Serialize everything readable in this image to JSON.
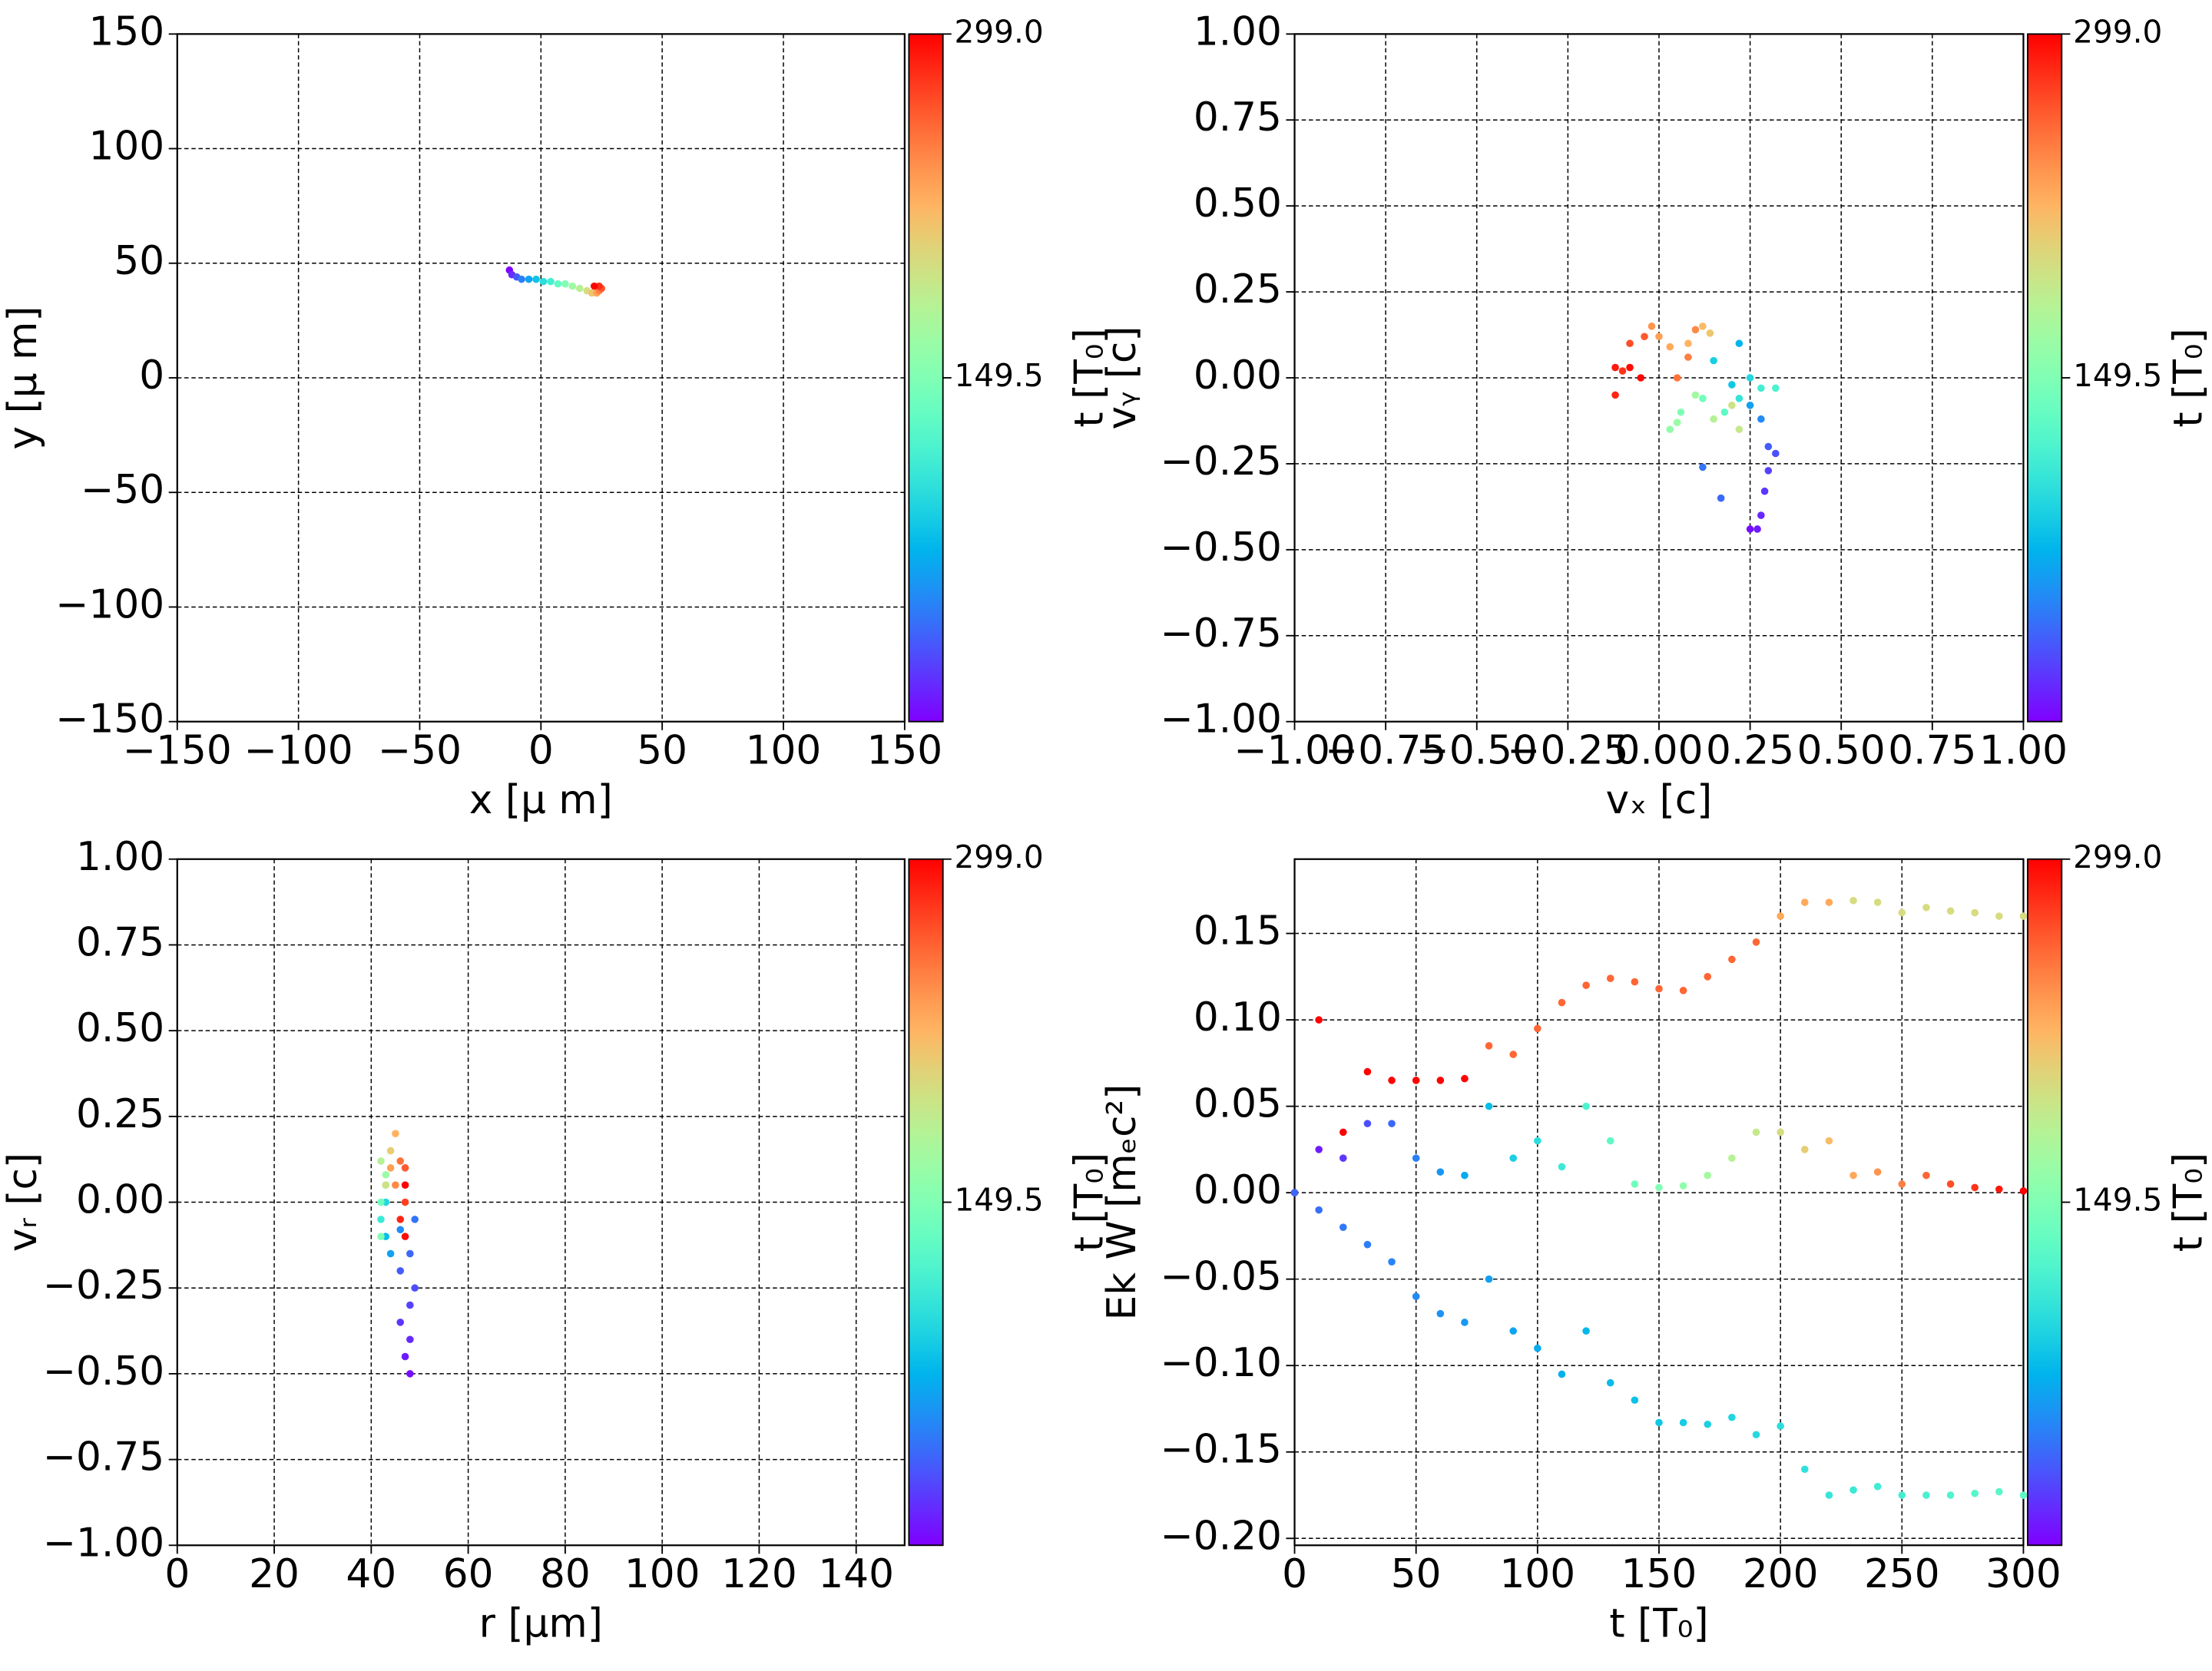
{
  "chart_data": [
    {
      "type": "scatter",
      "xlabel": "x  [μ m]",
      "ylabel": "y  [μ m]",
      "colorbar_label": "t [T₀]",
      "xlim": [
        -150,
        150
      ],
      "ylim": [
        -150,
        150
      ],
      "xticks": [
        {
          "value": -150,
          "label": "−150"
        },
        {
          "value": -100,
          "label": "−100"
        },
        {
          "value": -50,
          "label": "−50"
        },
        0,
        50,
        100,
        150
      ],
      "yticks": [
        {
          "value": -150,
          "label": "−150"
        },
        {
          "value": -100,
          "label": "−100"
        },
        {
          "value": -50,
          "label": "−50"
        },
        0,
        50,
        100,
        150
      ],
      "grid": true,
      "colormap": "rainbow",
      "clim": [
        0,
        299
      ],
      "cticks": [
        149.5,
        {
          "value": 299,
          "label": "299.0"
        }
      ],
      "series": [
        {
          "x": [
            -13,
            -12,
            -10,
            -8,
            -5,
            -2,
            1,
            4,
            7,
            10,
            13,
            16,
            19,
            21,
            23,
            24,
            25,
            24,
            22
          ],
          "values": [
            47,
            45,
            44,
            43,
            43,
            43,
            42,
            42,
            41,
            41,
            40,
            39,
            38,
            37,
            37,
            38,
            39,
            40,
            40
          ],
          "c": [
            0,
            17,
            33,
            50,
            66,
            83,
            100,
            116,
            133,
            150,
            166,
            183,
            199,
            216,
            233,
            249,
            266,
            282,
            299
          ]
        }
      ]
    },
    {
      "type": "scatter",
      "xlabel": "vₓ [c]",
      "ylabel": "vᵧ [c]",
      "colorbar_label": "t [T₀]",
      "xlim": [
        -1,
        1
      ],
      "ylim": [
        -1,
        1
      ],
      "xticks": [
        {
          "value": -1,
          "label": "−1.00"
        },
        {
          "value": -0.75,
          "label": "−0.75"
        },
        {
          "value": -0.5,
          "label": "−0.50"
        },
        {
          "value": -0.25,
          "label": "−0.25"
        },
        {
          "value": 0,
          "label": "0.00"
        },
        0.25,
        {
          "value": 0.5,
          "label": "0.50"
        },
        0.75,
        {
          "value": 1,
          "label": "1.00"
        }
      ],
      "yticks": [
        {
          "value": -1,
          "label": "−1.00"
        },
        {
          "value": -0.75,
          "label": "−0.75"
        },
        {
          "value": -0.5,
          "label": "−0.50"
        },
        {
          "value": -0.25,
          "label": "−0.25"
        },
        {
          "value": 0,
          "label": "0.00"
        },
        0.25,
        {
          "value": 0.5,
          "label": "0.50"
        },
        0.75,
        {
          "value": 1,
          "label": "1.00"
        }
      ],
      "grid": true,
      "colormap": "rainbow",
      "clim": [
        0,
        299
      ],
      "cticks": [
        149.5,
        {
          "value": 299,
          "label": "299.0"
        }
      ],
      "series": [
        {
          "x": [
            0.25,
            0.27,
            0.28,
            0.29,
            0.3,
            0.32,
            0.3,
            0.17,
            0.12,
            0.28,
            0.25,
            0.22,
            0.2,
            0.15,
            0.25,
            0.22,
            0.28,
            0.32,
            0.18,
            0.12,
            0.06,
            0.03,
            0.05,
            0.1,
            0.15,
            0.22,
            0.2,
            0.14,
            0.12,
            0.08,
            0.03,
            0.0,
            -0.02,
            0.1,
            0.08,
            0.05,
            -0.04,
            -0.08,
            -0.1,
            -0.12,
            -0.12,
            -0.08,
            -0.05
          ],
          "values": [
            -0.44,
            -0.44,
            -0.4,
            -0.33,
            -0.27,
            -0.22,
            -0.2,
            -0.35,
            -0.26,
            -0.12,
            -0.08,
            0.1,
            -0.02,
            0.05,
            0.0,
            -0.06,
            -0.03,
            -0.03,
            -0.1,
            -0.06,
            -0.1,
            -0.15,
            -0.13,
            -0.05,
            -0.12,
            -0.15,
            -0.08,
            0.13,
            0.15,
            0.1,
            0.09,
            0.12,
            0.15,
            0.14,
            0.06,
            0.0,
            0.12,
            0.1,
            0.02,
            -0.05,
            0.03,
            0.03,
            0.0
          ],
          "c": [
            5,
            10,
            15,
            20,
            25,
            30,
            35,
            40,
            45,
            55,
            65,
            75,
            85,
            90,
            95,
            105,
            115,
            120,
            130,
            140,
            150,
            160,
            165,
            170,
            180,
            190,
            195,
            215,
            220,
            225,
            230,
            235,
            240,
            245,
            250,
            255,
            265,
            270,
            280,
            285,
            290,
            295,
            299
          ]
        }
      ]
    },
    {
      "type": "scatter",
      "xlabel": "r [μm]",
      "ylabel": "vᵣ [c]",
      "colorbar_label": "t [T₀]",
      "xlim": [
        0,
        150
      ],
      "ylim": [
        -1,
        1
      ],
      "xticks": [
        0,
        20,
        40,
        60,
        80,
        100,
        120,
        140
      ],
      "yticks": [
        {
          "value": -1,
          "label": "−1.00"
        },
        {
          "value": -0.75,
          "label": "−0.75"
        },
        {
          "value": -0.5,
          "label": "−0.50"
        },
        {
          "value": -0.25,
          "label": "−0.25"
        },
        {
          "value": 0,
          "label": "0.00"
        },
        0.25,
        {
          "value": 0.5,
          "label": "0.50"
        },
        0.75,
        {
          "value": 1,
          "label": "1.00"
        }
      ],
      "grid": true,
      "colormap": "rainbow",
      "clim": [
        0,
        299
      ],
      "cticks": [
        149.5,
        {
          "value": 299,
          "label": "299.0"
        }
      ],
      "series": [
        {
          "x": [
            48,
            47,
            48,
            46,
            48,
            49,
            46,
            48,
            49,
            46,
            44,
            43,
            43,
            42,
            43,
            42,
            42,
            43,
            42,
            43,
            44,
            45,
            44,
            45,
            46,
            47,
            47,
            46,
            47,
            47
          ],
          "values": [
            -0.5,
            -0.45,
            -0.4,
            -0.35,
            -0.3,
            -0.25,
            -0.2,
            -0.15,
            -0.05,
            -0.08,
            -0.15,
            -0.1,
            0.0,
            -0.05,
            0.05,
            0.0,
            -0.1,
            0.08,
            0.12,
            0.05,
            0.15,
            0.2,
            0.1,
            0.05,
            0.12,
            0.1,
            0.0,
            -0.05,
            -0.1,
            0.05
          ],
          "c": [
            5,
            10,
            15,
            20,
            25,
            30,
            35,
            40,
            45,
            55,
            65,
            80,
            95,
            110,
            125,
            140,
            150,
            165,
            180,
            195,
            210,
            225,
            235,
            245,
            255,
            265,
            275,
            285,
            295,
            299
          ]
        }
      ]
    },
    {
      "type": "scatter",
      "xlabel": "t [T₀]",
      "ylabel": "Ek W [mₑc²]",
      "colorbar_label": "t [T₀]",
      "xlim": [
        0,
        300
      ],
      "ylim": [
        -0.204,
        0.193
      ],
      "xticks": [
        0,
        50,
        100,
        150,
        200,
        250,
        300
      ],
      "yticks": [
        {
          "value": -0.2,
          "label": "−0.20"
        },
        {
          "value": -0.15,
          "label": "−0.15"
        },
        {
          "value": -0.1,
          "label": "−0.10"
        },
        {
          "value": -0.05,
          "label": "−0.05"
        },
        {
          "value": 0,
          "label": "0.00"
        },
        0.05,
        {
          "value": 0.1,
          "label": "0.10"
        },
        0.15
      ],
      "grid": true,
      "colormap": "rainbow",
      "clim": [
        0,
        299
      ],
      "cticks": [
        149.5,
        {
          "value": 299,
          "label": "299.0"
        }
      ],
      "series": [
        {
          "x": [
            0,
            10,
            20,
            30,
            40,
            50,
            60,
            70,
            80,
            90,
            100,
            110,
            120,
            130,
            140,
            150,
            160,
            170,
            180,
            190,
            200,
            210,
            220,
            230,
            240,
            250,
            260,
            270,
            280,
            290,
            300
          ],
          "values": [
            0.0,
            0.1,
            0.035,
            0.07,
            0.065,
            0.065,
            0.065,
            0.066,
            0.085,
            0.08,
            0.095,
            0.11,
            0.12,
            0.124,
            0.122,
            0.118,
            0.117,
            0.125,
            0.135,
            0.145,
            0.16,
            0.168,
            0.168,
            0.169,
            0.168,
            0.162,
            0.165,
            0.163,
            0.162,
            0.16,
            0.16
          ],
          "c": [
            299,
            299,
            299,
            299,
            299,
            299,
            299,
            299,
            260,
            260,
            260,
            260,
            260,
            260,
            260,
            260,
            260,
            260,
            260,
            260,
            230,
            230,
            230,
            200,
            200,
            200,
            200,
            200,
            200,
            200,
            200
          ]
        },
        {
          "x": [
            0,
            10,
            20,
            30,
            40,
            50,
            60,
            70,
            80,
            90,
            100,
            110,
            120,
            130,
            140,
            150,
            160,
            170,
            180,
            190,
            200,
            210,
            220,
            230,
            240,
            250,
            260,
            270,
            280,
            290,
            300
          ],
          "values": [
            0.0,
            0.025,
            0.02,
            0.04,
            0.04,
            0.02,
            0.012,
            0.01,
            0.05,
            0.02,
            0.03,
            0.015,
            0.05,
            0.03,
            0.005,
            0.003,
            0.004,
            0.01,
            0.02,
            0.035,
            0.035,
            0.025,
            0.03,
            0.01,
            0.012,
            0.005,
            0.01,
            0.005,
            0.003,
            0.002,
            0.001
          ],
          "c": [
            0,
            10,
            20,
            30,
            40,
            50,
            60,
            70,
            80,
            90,
            100,
            110,
            120,
            130,
            140,
            150,
            160,
            170,
            180,
            190,
            200,
            210,
            220,
            230,
            240,
            250,
            260,
            270,
            280,
            290,
            299
          ]
        },
        {
          "x": [
            0,
            10,
            20,
            30,
            40,
            50,
            60,
            70,
            80,
            90,
            100,
            110,
            120,
            130,
            140,
            150,
            160,
            170,
            180,
            190,
            200,
            210,
            220,
            230,
            240,
            250,
            260,
            270,
            280,
            290,
            300
          ],
          "values": [
            0.0,
            -0.01,
            -0.02,
            -0.03,
            -0.04,
            -0.06,
            -0.07,
            -0.075,
            -0.05,
            -0.08,
            -0.09,
            -0.105,
            -0.08,
            -0.11,
            -0.12,
            -0.133,
            -0.133,
            -0.134,
            -0.13,
            -0.14,
            -0.135,
            -0.16,
            -0.175,
            -0.172,
            -0.17,
            -0.175,
            -0.175,
            -0.175,
            -0.174,
            -0.173,
            -0.175
          ],
          "c": [
            40,
            43,
            46,
            49,
            52,
            55,
            58,
            61,
            64,
            67,
            70,
            73,
            76,
            79,
            82,
            85,
            88,
            91,
            94,
            97,
            100,
            103,
            106,
            109,
            112,
            115,
            118,
            121,
            124,
            127,
            130
          ]
        }
      ]
    }
  ]
}
